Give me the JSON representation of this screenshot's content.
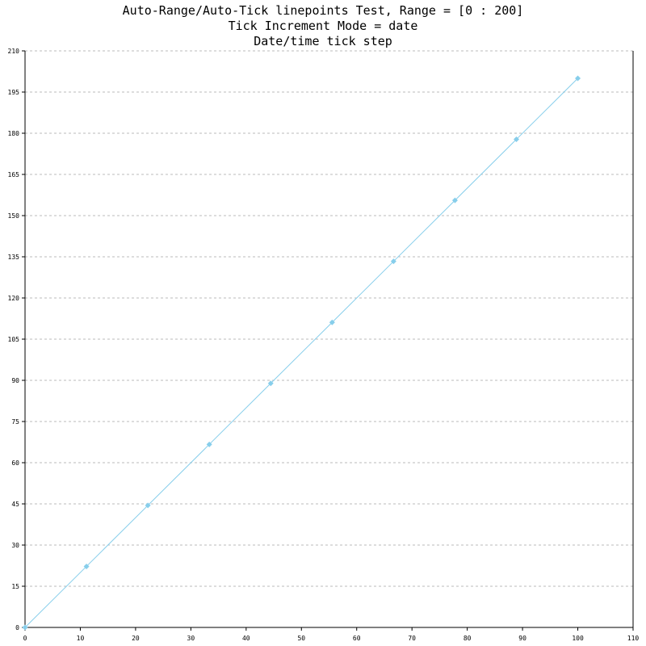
{
  "chart_data": {
    "type": "line",
    "title_lines": [
      "Auto-Range/Auto-Tick linepoints Test, Range = [0 : 200]",
      "Tick Increment Mode = date",
      "Date/time tick step"
    ],
    "x": [
      0,
      11.111,
      22.222,
      33.333,
      44.444,
      55.556,
      66.667,
      77.778,
      88.889,
      100
    ],
    "values": [
      0,
      22.222,
      44.444,
      66.667,
      88.889,
      111.111,
      133.333,
      155.556,
      177.778,
      200
    ],
    "color": "#87ceeb",
    "xlim": [
      0,
      110
    ],
    "xticks": [
      0,
      10,
      20,
      30,
      40,
      50,
      60,
      70,
      80,
      90,
      100,
      110
    ],
    "ylim": [
      0,
      210
    ],
    "yticks": [
      0,
      15,
      30,
      45,
      60,
      75,
      90,
      105,
      120,
      135,
      150,
      165,
      180,
      195,
      210
    ],
    "grid": true
  }
}
